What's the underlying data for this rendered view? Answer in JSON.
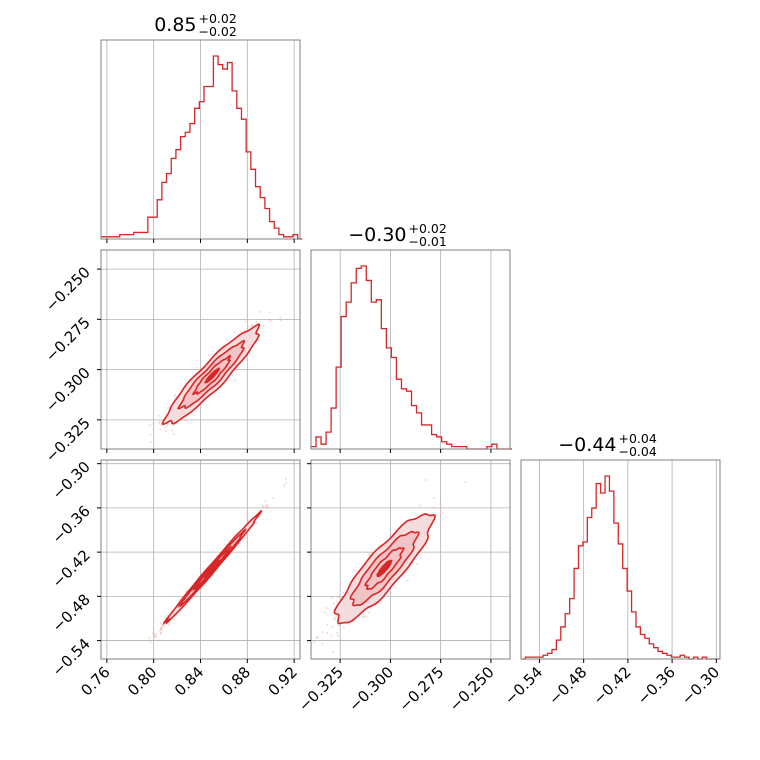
{
  "colors": {
    "accent": "#d62728",
    "grid": "#b0b0b0",
    "frame": "#808080"
  },
  "chart_data": {
    "type": "corner",
    "grid": true,
    "parameters": [
      {
        "range": [
          0.755,
          0.925
        ],
        "ticks": [
          0.76,
          0.8,
          0.84,
          0.88,
          0.92
        ],
        "tick_labels": [
          "0.76",
          "0.80",
          "0.84",
          "0.88",
          "0.92"
        ],
        "title": {
          "value": "0.85",
          "plus": "+0.02",
          "minus": "−0.02"
        },
        "median": 0.85,
        "sd": 0.02
      },
      {
        "range": [
          -0.3395,
          -0.2405
        ],
        "ticks": [
          -0.325,
          -0.3,
          -0.275,
          -0.25
        ],
        "tick_labels": [
          "−0.325",
          "−0.300",
          "−0.275",
          "−0.250"
        ],
        "title": {
          "value": "−0.30",
          "plus": "+0.02",
          "minus": "−0.01"
        },
        "median": -0.303,
        "sd": 0.012
      },
      {
        "range": [
          -0.565,
          -0.295
        ],
        "ticks": [
          -0.54,
          -0.48,
          -0.42,
          -0.36,
          -0.3
        ],
        "tick_labels": [
          "−0.54",
          "−0.48",
          "−0.42",
          "−0.36",
          "−0.30"
        ],
        "title": {
          "value": "−0.44",
          "plus": "+0.04",
          "minus": "−0.04"
        },
        "median": -0.442,
        "sd": 0.037
      }
    ],
    "histograms": [
      {
        "param": 0,
        "x_start": 0.755,
        "bin_width": 0.004,
        "counts": [
          1,
          1,
          1,
          1,
          2,
          2,
          2,
          3,
          3,
          3,
          10,
          10,
          18,
          26,
          30,
          37,
          41,
          47,
          49,
          53,
          60,
          63,
          70,
          70,
          84,
          80,
          78,
          81,
          68,
          60,
          55,
          40,
          32,
          24,
          19,
          14,
          8,
          5,
          2,
          1,
          1,
          2,
          0
        ]
      },
      {
        "param": 1,
        "x_start": -0.3395,
        "bin_width": 0.0025,
        "counts": [
          1,
          5,
          2,
          7,
          17,
          34,
          55,
          61,
          69,
          75,
          76,
          70,
          61,
          62,
          50,
          42,
          38,
          29,
          25,
          24,
          18,
          15,
          10,
          10,
          6,
          5,
          3,
          2,
          1,
          1,
          1,
          0,
          0,
          0,
          0,
          1,
          2,
          0,
          0,
          0
        ]
      },
      {
        "param": 2,
        "x_start": -0.565,
        "bin_width": 0.006,
        "counts": [
          0,
          1,
          1,
          1,
          1,
          2,
          3,
          5,
          10,
          17,
          24,
          32,
          48,
          60,
          62,
          75,
          80,
          93,
          88,
          97,
          89,
          72,
          61,
          48,
          36,
          25,
          17,
          13,
          11,
          8,
          6,
          4,
          3,
          2,
          1,
          1,
          2,
          1,
          0,
          1,
          0,
          1,
          0,
          0,
          0
        ]
      }
    ],
    "pairs": [
      {
        "x_param": 0,
        "y_param": 1,
        "correlation": 0.93,
        "contours": [
          {
            "level": 0.39,
            "fill": "#f2c4c5"
          },
          {
            "level": 0.86,
            "fill": "#f7dcdd"
          }
        ]
      },
      {
        "x_param": 0,
        "y_param": 2,
        "correlation": 0.995,
        "contours": [
          {
            "level": 0.39,
            "fill": "#f2c4c5"
          },
          {
            "level": 0.86,
            "fill": "#f7dcdd"
          }
        ]
      },
      {
        "x_param": 1,
        "y_param": 2,
        "correlation": 0.88,
        "contours": [
          {
            "level": 0.39,
            "fill": "#f2c4c5"
          },
          {
            "level": 0.86,
            "fill": "#f7dcdd"
          }
        ]
      }
    ]
  }
}
